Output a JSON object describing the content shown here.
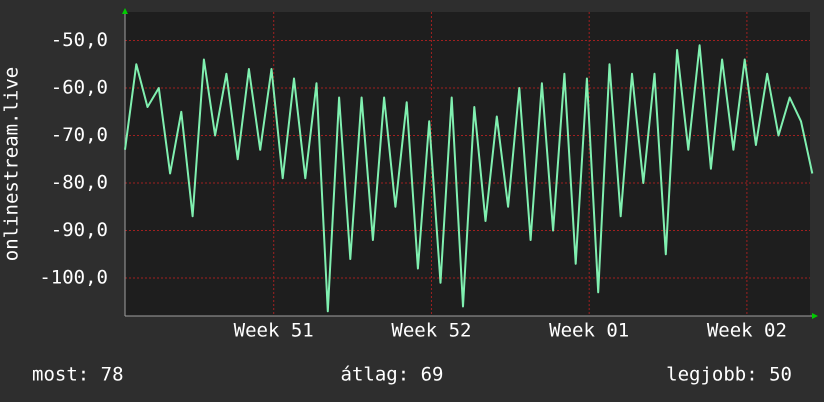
{
  "chart_data": {
    "type": "line",
    "y_label": "onlinestream.live",
    "x": [
      0,
      0.5,
      1,
      1.5,
      2,
      2.5,
      3,
      3.5,
      4,
      4.5,
      5,
      5.5,
      6,
      6.5,
      7,
      7.5,
      8,
      8.5,
      9,
      9.5,
      10,
      10.5,
      11,
      11.5,
      12,
      12.5,
      13,
      13.5,
      14,
      14.5,
      15,
      15.5,
      16,
      16.5,
      17,
      17.5,
      18,
      18.5,
      19,
      19.5,
      20,
      20.5,
      21,
      21.5,
      22,
      22.5,
      23,
      23.5,
      24,
      24.5,
      25,
      25.5,
      26,
      26.5,
      27,
      27.5,
      28,
      28.5,
      29,
      29.5,
      30,
      30.5
    ],
    "series": [
      {
        "name": "onlinestream.live",
        "color": "#80f0b0",
        "values": [
          -73,
          -55,
          -64,
          -60,
          -78,
          -65,
          -87,
          -54,
          -70,
          -57,
          -75,
          -56,
          -73,
          -56,
          -79,
          -58,
          -79,
          -59,
          -107,
          -62,
          -96,
          -62,
          -92,
          -62,
          -85,
          -63,
          -98,
          -67,
          -101,
          -62,
          -106,
          -64,
          -88,
          -66,
          -85,
          -60,
          -92,
          -59,
          -90,
          -57,
          -97,
          -58,
          -103,
          -55,
          -87,
          -57,
          -80,
          -57,
          -95,
          -52,
          -73,
          -51,
          -77,
          -54,
          -73,
          -54,
          -72,
          -57,
          -70,
          -62,
          -67,
          -78
        ]
      }
    ],
    "xlim": [
      0,
      30.4
    ],
    "xticks": [
      {
        "value": 6.6,
        "label": "Week 51"
      },
      {
        "value": 13.6,
        "label": "Week 52"
      },
      {
        "value": 20.6,
        "label": "Week 01"
      },
      {
        "value": 27.6,
        "label": "Week 02"
      }
    ],
    "ylim": [
      -108,
      -44
    ],
    "yticks": [
      {
        "value": -100,
        "label": "-100,0"
      },
      {
        "value": -90,
        "label": "-90,0"
      },
      {
        "value": -80,
        "label": "-80,0"
      },
      {
        "value": -70,
        "label": "-70,0"
      },
      {
        "value": -60,
        "label": "-60,0"
      },
      {
        "value": -50,
        "label": "-50,0"
      }
    ],
    "grid": true,
    "footer": {
      "current": "most: 78",
      "average": "átlag: 69",
      "best": "legjobb: 50"
    }
  }
}
